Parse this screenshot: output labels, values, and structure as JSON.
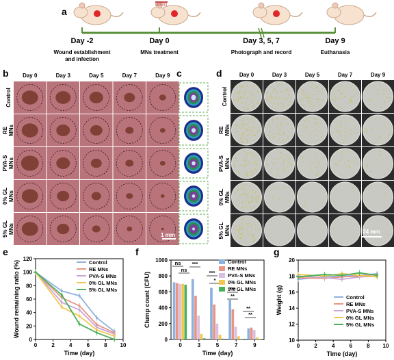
{
  "panel_letters": {
    "a": "a",
    "b": "b",
    "c": "c",
    "d": "d",
    "e": "e",
    "f": "f",
    "g": "g"
  },
  "timeline": {
    "steps": [
      {
        "day": "Day -2",
        "desc1": "Wound establishment",
        "desc2": "and infection"
      },
      {
        "day": "Day 0",
        "desc1": "MNs treatment",
        "desc2": ""
      },
      {
        "day": "Day 3, 5, 7",
        "desc1": "Photograph and record",
        "desc2": ""
      },
      {
        "day": "Day 9",
        "desc1": "Euthanasia",
        "desc2": ""
      }
    ]
  },
  "photo_grid": {
    "days": [
      "Day 0",
      "Day 3",
      "Day 5",
      "Day 7",
      "Day 9"
    ],
    "groups": [
      {
        "line1": "Control",
        "line2": ""
      },
      {
        "line1": "RE",
        "line2": "MNs"
      },
      {
        "line1": "PVA-S",
        "line2": "MNs"
      },
      {
        "line1": "0% GL",
        "line2": "MNs"
      },
      {
        "line1": "5% GL",
        "line2": "MNs"
      }
    ],
    "scale_b": "1 mm",
    "scale_d": "24 mm",
    "colors": {
      "skin": "#b9737a",
      "wound": "#7a3b2e",
      "plate": "#c9c9c4",
      "colony": "#c8c27a"
    }
  },
  "chart_data": [
    {
      "type": "line",
      "panel": "e",
      "xlabel": "Time (day)",
      "ylabel": "Wound remaining ratio (%)",
      "xlim": [
        0,
        10
      ],
      "ylim": [
        0,
        120
      ],
      "xticks": [
        "0",
        "2",
        "4",
        "6",
        "8",
        "10"
      ],
      "yticks": [
        "0",
        "20",
        "40",
        "60",
        "80",
        "100",
        "120"
      ],
      "x": [
        0,
        3,
        5,
        7,
        9
      ],
      "series": [
        {
          "name": "Control",
          "color": "#8fb1de",
          "values": [
            100,
            72,
            65,
            32,
            12
          ]
        },
        {
          "name": "RE MNs",
          "color": "#e99583",
          "values": [
            100,
            62,
            50,
            22,
            10
          ]
        },
        {
          "name": "PVA-S MNs",
          "color": "#c7a6d6",
          "values": [
            100,
            55,
            44,
            18,
            8
          ]
        },
        {
          "name": "0% GL MNs",
          "color": "#f3c64d",
          "values": [
            100,
            48,
            35,
            14,
            5
          ]
        },
        {
          "name": "5% GL MNs",
          "color": "#4bb15a",
          "values": [
            100,
            66,
            23,
            10,
            0
          ]
        }
      ]
    },
    {
      "type": "bar",
      "panel": "f",
      "xlabel": "Time (day)",
      "ylabel": "Clump count (CFU)",
      "ylim": [
        0,
        1000
      ],
      "yticks": [
        "0",
        "200",
        "400",
        "600",
        "800",
        "1000"
      ],
      "categories": [
        "0",
        "3",
        "5",
        "7",
        "9"
      ],
      "series": [
        {
          "name": "Control",
          "color": "#8fb1de",
          "values": [
            720,
            760,
            650,
            500,
            140
          ]
        },
        {
          "name": "RE MNs",
          "color": "#e99583",
          "values": [
            710,
            550,
            440,
            380,
            150
          ]
        },
        {
          "name": "PVA-S MNs",
          "color": "#d8bfe3",
          "values": [
            700,
            300,
            200,
            160,
            120
          ]
        },
        {
          "name": "0% GL MNs",
          "color": "#f3c64d",
          "values": [
            700,
            70,
            60,
            40,
            25
          ]
        },
        {
          "name": "5% GL MNs",
          "color": "#4bb15a",
          "values": [
            690,
            15,
            10,
            5,
            5
          ]
        }
      ],
      "significance": {
        "ns1": "ns",
        "ns2": "ns",
        "s1": "***",
        "s2": "***",
        "s3": "*",
        "s4": "***",
        "s5": "**",
        "s6": "**",
        "s7": "**"
      }
    },
    {
      "type": "line",
      "panel": "g",
      "xlabel": "Time (day)",
      "ylabel": "Weight (g)",
      "xlim": [
        0,
        10
      ],
      "ylim": [
        10,
        20
      ],
      "xticks": [
        "0",
        "2",
        "4",
        "6",
        "8",
        "10"
      ],
      "yticks": [
        "10",
        "12",
        "14",
        "16",
        "18",
        "20"
      ],
      "x": [
        0,
        3,
        5,
        7,
        9
      ],
      "series": [
        {
          "name": "Control",
          "color": "#8fb1de",
          "values": [
            17.6,
            17.9,
            18.0,
            18.1,
            18.3
          ]
        },
        {
          "name": "RE MNs",
          "color": "#e99583",
          "values": [
            17.8,
            17.7,
            17.9,
            18.0,
            18.2
          ]
        },
        {
          "name": "PVA-S MNs",
          "color": "#c7a6d6",
          "values": [
            18.0,
            17.8,
            17.6,
            17.9,
            18.0
          ]
        },
        {
          "name": "0% GL MNs",
          "color": "#f3c64d",
          "values": [
            18.2,
            18.0,
            18.3,
            18.1,
            17.9
          ]
        },
        {
          "name": "5% GL MNs",
          "color": "#4bb15a",
          "values": [
            17.9,
            18.2,
            18.1,
            18.4,
            18.1
          ]
        }
      ]
    }
  ]
}
